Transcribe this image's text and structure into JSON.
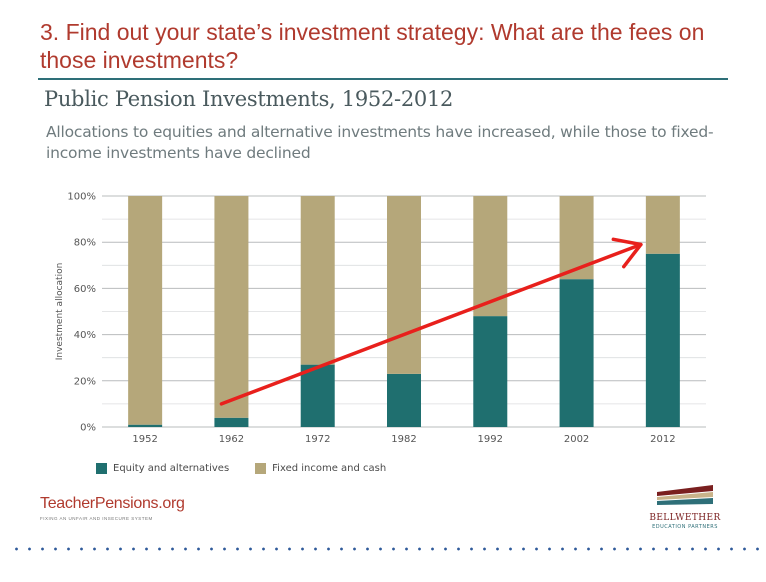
{
  "slide": {
    "title": "3. Find out your state’s investment strategy: What are the fees on those investments?"
  },
  "chart_data": {
    "type": "bar",
    "stacked": true,
    "title": "Public Pension Investments, 1952-2012",
    "subtitle": "Allocations to equities and alternative investments have increased, while those to fixed-income investments have declined",
    "ylabel": "Investment allocation",
    "xlabel": "",
    "ylim": [
      0,
      100
    ],
    "y_ticks": [
      "0%",
      "20%",
      "40%",
      "60%",
      "80%",
      "100%"
    ],
    "y_tick_values": [
      0,
      20,
      40,
      60,
      80,
      100
    ],
    "grid": true,
    "legend_position": "bottom-left",
    "categories": [
      "1952",
      "1962",
      "1972",
      "1982",
      "1992",
      "2002",
      "2012"
    ],
    "series": [
      {
        "name": "Equity and alternatives",
        "color": "#1f6f6f",
        "values": [
          1,
          4,
          27,
          23,
          48,
          64,
          75
        ]
      },
      {
        "name": "Fixed income and cash",
        "color": "#b5a77a",
        "values": [
          99,
          96,
          73,
          77,
          52,
          36,
          25
        ]
      }
    ],
    "annotation": {
      "type": "arrow",
      "color": "#e8201c",
      "from": [
        "1962",
        10
      ],
      "to": [
        "2012",
        79
      ]
    }
  },
  "logos": {
    "left_name": "TeacherPensions.org",
    "left_tagline": "FIXING AN UNFAIR AND INSECURE SYSTEM",
    "right_name": "BELLWETHER",
    "right_tagline": "EDUCATION PARTNERS",
    "right_colors": [
      "#7a1f1f",
      "#c9b38a",
      "#2e6f78"
    ]
  }
}
